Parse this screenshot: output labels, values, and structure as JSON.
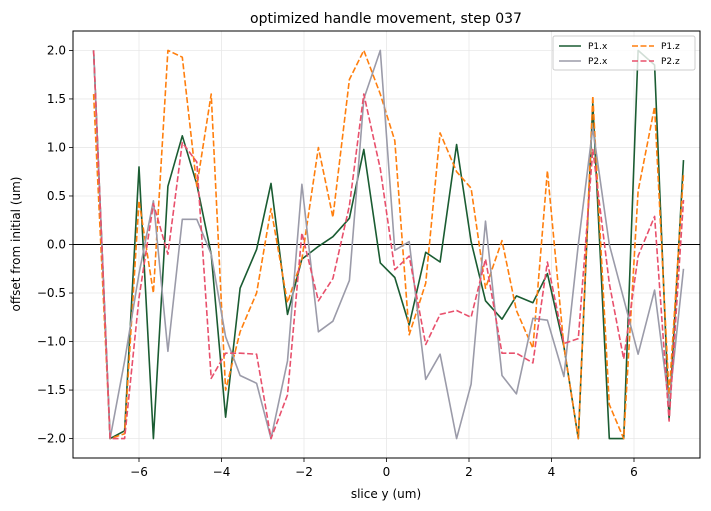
{
  "chart_data": {
    "type": "line",
    "title": "optimized handle movement, step 037",
    "xlabel": "slice y (um)",
    "ylabel": "offset from initial (um)",
    "xlim": [
      -7.6,
      7.6
    ],
    "ylim": [
      -2.2,
      2.2
    ],
    "x_ticks": [
      -6,
      -4,
      -2,
      0,
      2,
      4,
      6
    ],
    "y_ticks": [
      -2.0,
      -1.5,
      -1.0,
      -0.5,
      0.0,
      0.5,
      1.0,
      1.5,
      2.0
    ],
    "x_tick_labels": [
      "−6",
      "−4",
      "−2",
      "0",
      "2",
      "4",
      "6"
    ],
    "y_tick_labels": [
      "−2.0",
      "−1.5",
      "−1.0",
      "−0.5",
      "0.0",
      "0.5",
      "1.0",
      "1.5",
      "2.0"
    ],
    "grid": true,
    "zero_line": true,
    "legend_position": "top-right",
    "x": [
      -7.1,
      -6.7,
      -6.35,
      -6.0,
      -5.65,
      -5.3,
      -4.95,
      -4.6,
      -4.25,
      -3.9,
      -3.55,
      -3.15,
      -2.8,
      -2.4,
      -2.05,
      -1.65,
      -1.3,
      -0.9,
      -0.55,
      -0.15,
      0.2,
      0.55,
      0.95,
      1.3,
      1.7,
      2.05,
      2.4,
      2.8,
      3.15,
      3.55,
      3.9,
      4.3,
      4.65,
      5.0,
      5.4,
      5.75,
      6.1,
      6.5,
      6.85,
      7.2
    ],
    "series": [
      {
        "name": "P1.x",
        "color": "#1a5c32",
        "dash": "solid",
        "values": [
          2.0,
          -2.0,
          -1.92,
          0.8,
          -2.0,
          0.6,
          1.12,
          0.62,
          -0.1,
          -1.78,
          -0.45,
          -0.05,
          0.63,
          -0.72,
          -0.15,
          -0.02,
          0.08,
          0.27,
          0.98,
          -0.19,
          -0.34,
          -0.83,
          -0.08,
          -0.18,
          1.03,
          0.03,
          -0.58,
          -0.77,
          -0.53,
          -0.6,
          -0.3,
          -1.05,
          -2.0,
          1.45,
          -2.0,
          -2.0,
          2.0,
          1.85,
          -1.8,
          0.87
        ]
      },
      {
        "name": "P1.z",
        "color": "#ff7f0e",
        "dash": "dashed",
        "values": [
          1.55,
          -2.0,
          -1.95,
          0.45,
          -0.5,
          2.0,
          1.93,
          0.6,
          1.55,
          -1.5,
          -0.9,
          -0.5,
          0.37,
          -0.6,
          -0.15,
          1.0,
          0.28,
          1.7,
          2.0,
          1.55,
          1.07,
          -0.93,
          -0.4,
          1.15,
          0.75,
          0.58,
          -0.45,
          0.04,
          -0.68,
          -1.07,
          0.76,
          -1.05,
          -2.0,
          1.53,
          -1.65,
          -2.0,
          0.55,
          1.42,
          -1.55,
          0.73
        ]
      },
      {
        "name": "P2.x",
        "color": "#9b9ba9",
        "dash": "solid",
        "values": [
          2.0,
          -2.0,
          -1.2,
          -0.3,
          0.45,
          -1.1,
          0.26,
          0.26,
          -0.1,
          -0.95,
          -1.35,
          -1.43,
          -2.0,
          -1.2,
          0.62,
          -0.9,
          -0.79,
          -0.37,
          1.5,
          2.0,
          -0.06,
          0.03,
          -1.39,
          -1.13,
          -2.0,
          -1.44,
          0.24,
          -1.35,
          -1.54,
          -0.76,
          -0.78,
          -1.36,
          0.0,
          1.2,
          0.0,
          -0.56,
          -1.13,
          -0.47,
          -1.65,
          -0.25
        ]
      },
      {
        "name": "P2.z",
        "color": "#e8506c",
        "dash": "dashed",
        "values": [
          2.0,
          -2.0,
          -2.0,
          -0.55,
          0.42,
          -0.1,
          1.05,
          0.85,
          -1.38,
          -1.12,
          -1.12,
          -1.13,
          -2.0,
          -1.55,
          0.12,
          -0.58,
          -0.35,
          0.4,
          1.55,
          0.78,
          -0.26,
          -0.12,
          -1.03,
          -0.72,
          -0.68,
          -0.75,
          -0.15,
          -1.12,
          -1.12,
          -1.22,
          -0.18,
          -1.02,
          -0.97,
          0.98,
          -0.4,
          -1.18,
          -0.12,
          0.29,
          -1.82,
          0.46
        ]
      }
    ]
  }
}
